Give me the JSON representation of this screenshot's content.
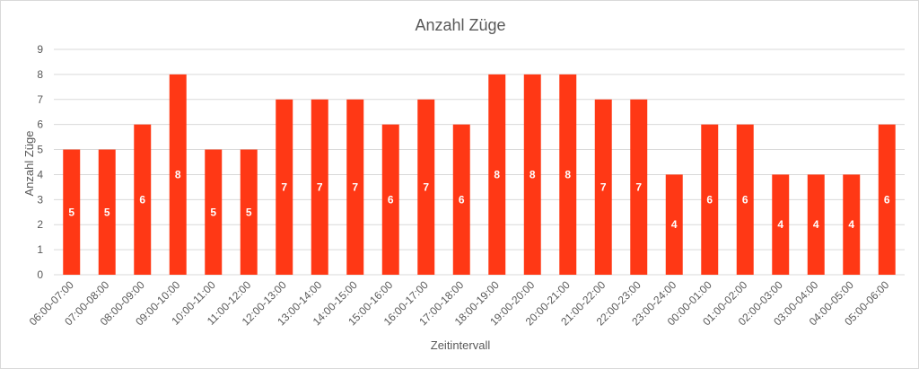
{
  "colors": {
    "bar": "#ff3815",
    "grid": "#d9d9d9",
    "text": "#595959",
    "label": "#ffffff"
  },
  "chart_data": {
    "type": "bar",
    "title": "Anzahl Züge",
    "xlabel": "Zeitintervall",
    "ylabel": "Anzahl Züge",
    "ylim": [
      0,
      9
    ],
    "yticks": [
      0,
      1,
      2,
      3,
      4,
      5,
      6,
      7,
      8,
      9
    ],
    "grid": true,
    "categories": [
      "06:00-07:00",
      "07:00-08:00",
      "08:00-09:00",
      "09:00-10:00",
      "10:00-11:00",
      "11:00-12:00",
      "12:00-13:00",
      "13:00-14:00",
      "14:00-15:00",
      "15:00-16:00",
      "16:00-17:00",
      "17:00-18:00",
      "18:00-19:00",
      "19:00-20:00",
      "20:00-21:00",
      "21:00-22:00",
      "22:00-23:00",
      "23:00-24:00",
      "00:00-01:00",
      "01:00-02:00",
      "02:00-03:00",
      "03:00-04:00",
      "04:00-05:00",
      "05:00-06:00"
    ],
    "values": [
      5,
      5,
      6,
      8,
      5,
      5,
      7,
      7,
      7,
      6,
      7,
      6,
      8,
      8,
      8,
      7,
      7,
      4,
      6,
      6,
      4,
      4,
      4,
      6
    ]
  }
}
